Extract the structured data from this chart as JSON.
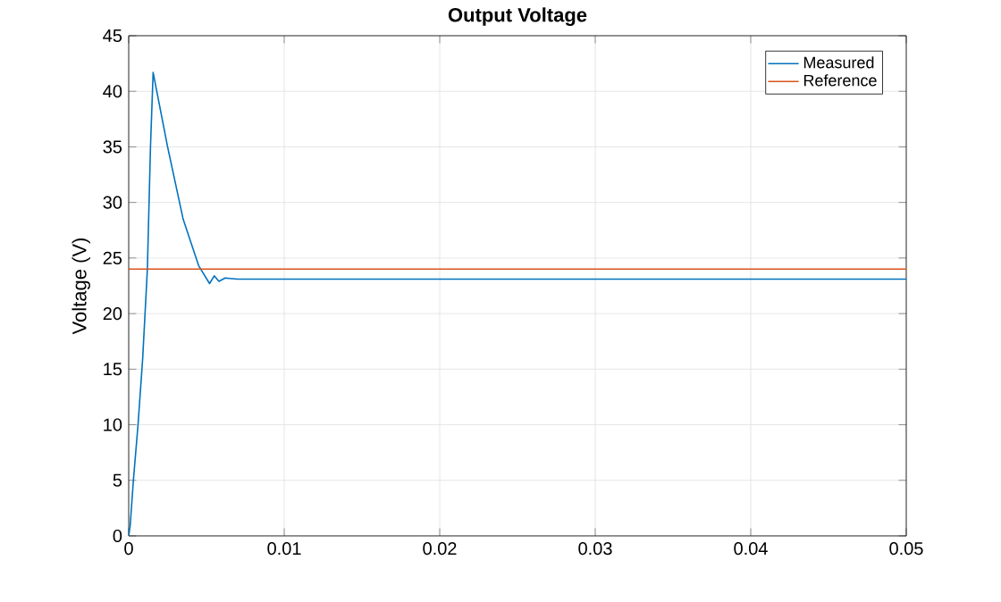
{
  "chart_data": {
    "type": "line",
    "title": "Output Voltage",
    "ylabel": "Voltage (V)",
    "xlim": [
      0,
      0.05
    ],
    "ylim": [
      0,
      45
    ],
    "xticks": [
      0,
      0.01,
      0.02,
      0.03,
      0.04,
      0.05
    ],
    "yticks": [
      0,
      5,
      10,
      15,
      20,
      25,
      30,
      35,
      40,
      45
    ],
    "grid": true,
    "legend": "top right",
    "series": [
      {
        "name": "Measured",
        "color": "#0072bd",
        "x": [
          0,
          0.0001,
          0.0003,
          0.0006,
          0.0009,
          0.0012,
          0.0014,
          0.00157,
          0.0025,
          0.0035,
          0.0045,
          0.0052,
          0.0055,
          0.0058,
          0.0062,
          0.007,
          0.01,
          0.02,
          0.03,
          0.04,
          0.05
        ],
        "values": [
          0,
          1,
          5,
          10,
          16,
          24,
          35,
          41.7,
          35,
          28.5,
          24.3,
          22.7,
          23.4,
          22.9,
          23.2,
          23.1,
          23.1,
          23.1,
          23.1,
          23.1,
          23.1
        ]
      },
      {
        "name": "Reference",
        "color": "#d95319",
        "x": [
          0,
          0.05
        ],
        "values": [
          24,
          24
        ]
      }
    ]
  }
}
